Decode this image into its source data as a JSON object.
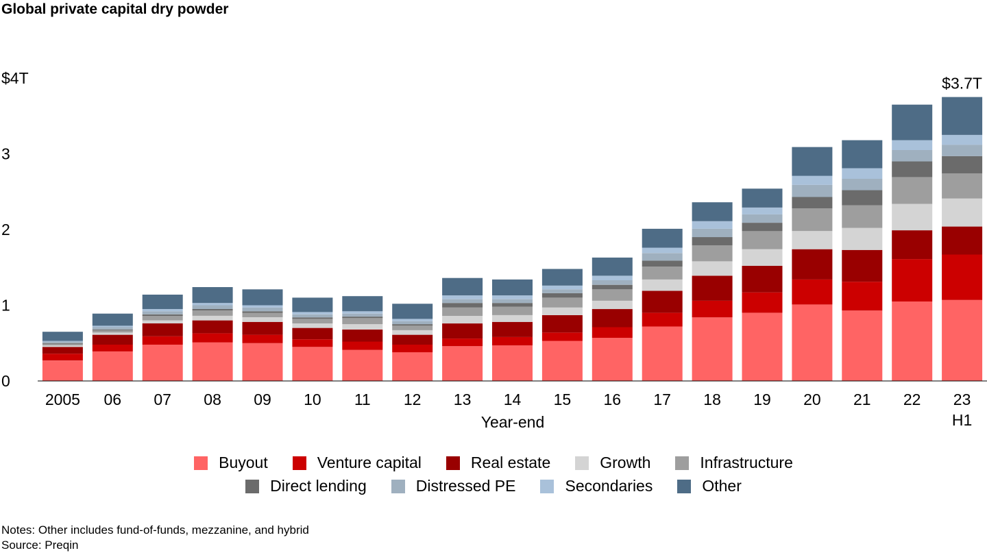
{
  "title": "Global private capital dry powder",
  "chart_data": {
    "type": "bar",
    "stacked": true,
    "title": "Global private capital dry powder",
    "xlabel": "Year-end",
    "ylabel": "",
    "ylim": [
      0,
      4
    ],
    "yticks": [
      {
        "value": 0,
        "label": "0"
      },
      {
        "value": 1,
        "label": "1"
      },
      {
        "value": 2,
        "label": "2"
      },
      {
        "value": 3,
        "label": "3"
      },
      {
        "value": 4,
        "label": "$4T"
      }
    ],
    "grid": false,
    "legend_position": "bottom",
    "categories": [
      "2005",
      "06",
      "07",
      "08",
      "09",
      "10",
      "11",
      "12",
      "13",
      "14",
      "15",
      "16",
      "17",
      "18",
      "19",
      "20",
      "21",
      "22",
      "23\nH1"
    ],
    "series": [
      {
        "name": "Buyout",
        "color": "#ff6464",
        "values": [
          0.27,
          0.39,
          0.48,
          0.51,
          0.5,
          0.45,
          0.41,
          0.38,
          0.46,
          0.47,
          0.53,
          0.57,
          0.72,
          0.84,
          0.9,
          1.01,
          0.93,
          1.05,
          1.07
        ]
      },
      {
        "name": "Venture capital",
        "color": "#cc0000",
        "values": [
          0.09,
          0.09,
          0.11,
          0.12,
          0.11,
          0.1,
          0.11,
          0.1,
          0.1,
          0.11,
          0.11,
          0.14,
          0.18,
          0.22,
          0.27,
          0.33,
          0.38,
          0.56,
          0.6
        ]
      },
      {
        "name": "Real estate",
        "color": "#990000",
        "values": [
          0.09,
          0.13,
          0.17,
          0.17,
          0.17,
          0.15,
          0.16,
          0.13,
          0.2,
          0.2,
          0.23,
          0.24,
          0.29,
          0.33,
          0.35,
          0.4,
          0.42,
          0.38,
          0.37
        ]
      },
      {
        "name": "Growth",
        "color": "#d4d4d4",
        "values": [
          0.02,
          0.03,
          0.04,
          0.06,
          0.06,
          0.06,
          0.07,
          0.06,
          0.1,
          0.09,
          0.1,
          0.11,
          0.15,
          0.19,
          0.22,
          0.24,
          0.29,
          0.35,
          0.37
        ]
      },
      {
        "name": "Infrastructure",
        "color": "#9e9e9e",
        "values": [
          0.02,
          0.03,
          0.06,
          0.07,
          0.06,
          0.06,
          0.08,
          0.06,
          0.11,
          0.11,
          0.13,
          0.15,
          0.17,
          0.21,
          0.24,
          0.3,
          0.3,
          0.35,
          0.33
        ]
      },
      {
        "name": "Direct lending",
        "color": "#6b6b6b",
        "values": [
          0.01,
          0.01,
          0.02,
          0.02,
          0.02,
          0.02,
          0.02,
          0.02,
          0.06,
          0.05,
          0.06,
          0.06,
          0.08,
          0.11,
          0.11,
          0.15,
          0.2,
          0.21,
          0.23
        ]
      },
      {
        "name": "Distressed PE",
        "color": "#9fb0bf",
        "values": [
          0.02,
          0.03,
          0.04,
          0.05,
          0.05,
          0.04,
          0.04,
          0.04,
          0.05,
          0.05,
          0.05,
          0.06,
          0.1,
          0.11,
          0.11,
          0.16,
          0.15,
          0.15,
          0.15
        ]
      },
      {
        "name": "Secondaries",
        "color": "#a9c1da",
        "values": [
          0.01,
          0.02,
          0.03,
          0.03,
          0.03,
          0.03,
          0.03,
          0.03,
          0.05,
          0.05,
          0.05,
          0.06,
          0.07,
          0.1,
          0.09,
          0.12,
          0.14,
          0.13,
          0.13
        ]
      },
      {
        "name": "Other",
        "color": "#4e6c86",
        "values": [
          0.12,
          0.16,
          0.19,
          0.21,
          0.21,
          0.19,
          0.2,
          0.2,
          0.23,
          0.21,
          0.22,
          0.24,
          0.25,
          0.25,
          0.25,
          0.38,
          0.37,
          0.47,
          0.5
        ]
      }
    ],
    "annotations": [
      {
        "category_index": 18,
        "text": "$3.7T"
      }
    ]
  },
  "notes": "Notes: Other includes fund-of-funds, mezzanine, and hybrid",
  "source": "Source: Preqin"
}
